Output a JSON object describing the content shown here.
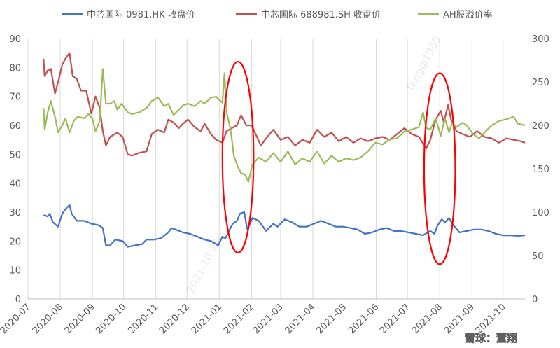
{
  "chart_data": {
    "type": "line",
    "title": "",
    "xlabel": "",
    "ylabel": "",
    "x_ticks": [
      "2020-07",
      "2020-08",
      "2020-09",
      "2020-10",
      "2020-11",
      "2020-12",
      "2021-01",
      "2021-02",
      "2021-03",
      "2021-04",
      "2021-05",
      "2021-06",
      "2021-07",
      "2021-08",
      "2021-09",
      "2021-10"
    ],
    "x_range": [
      "2020-07-01",
      "2021-10-22"
    ],
    "ylim_left": [
      0,
      90
    ],
    "yticks_left": [
      0,
      10,
      20,
      30,
      40,
      50,
      60,
      70,
      80,
      90
    ],
    "ylim_right": [
      0,
      300
    ],
    "yticks_right": [
      0,
      50,
      100,
      150,
      200,
      250,
      300
    ],
    "grid": "vertical",
    "legend_position": "top",
    "series": [
      {
        "name": "中芯国际 0981.HK 收盘价",
        "color": "#4472C4",
        "axis": "left",
        "points": [
          [
            "2020-07-16",
            29.0
          ],
          [
            "2020-07-20",
            28.5
          ],
          [
            "2020-07-22",
            29.5
          ],
          [
            "2020-07-25",
            26.5
          ],
          [
            "2020-07-30",
            25.0
          ],
          [
            "2020-08-03",
            29.5
          ],
          [
            "2020-08-06",
            31.0
          ],
          [
            "2020-08-10",
            32.5
          ],
          [
            "2020-08-12",
            29.5
          ],
          [
            "2020-08-17",
            27.0
          ],
          [
            "2020-08-24",
            27.0
          ],
          [
            "2020-08-31",
            26.0
          ],
          [
            "2020-09-07",
            25.5
          ],
          [
            "2020-09-11",
            24.5
          ],
          [
            "2020-09-14",
            18.5
          ],
          [
            "2020-09-18",
            18.5
          ],
          [
            "2020-09-23",
            20.5
          ],
          [
            "2020-09-30",
            20.0
          ],
          [
            "2020-10-05",
            18.0
          ],
          [
            "2020-10-12",
            18.5
          ],
          [
            "2020-10-19",
            19.0
          ],
          [
            "2020-10-23",
            20.5
          ],
          [
            "2020-10-30",
            20.5
          ],
          [
            "2020-11-06",
            21.0
          ],
          [
            "2020-11-13",
            23.0
          ],
          [
            "2020-11-16",
            24.5
          ],
          [
            "2020-11-20",
            24.0
          ],
          [
            "2020-11-27",
            23.0
          ],
          [
            "2020-12-04",
            22.5
          ],
          [
            "2020-12-11",
            21.5
          ],
          [
            "2020-12-18",
            20.5
          ],
          [
            "2020-12-24",
            20.0
          ],
          [
            "2020-12-31",
            18.5
          ],
          [
            "2021-01-04",
            21.5
          ],
          [
            "2021-01-07",
            21.0
          ],
          [
            "2021-01-11",
            24.0
          ],
          [
            "2021-01-14",
            26.0
          ],
          [
            "2021-01-18",
            27.0
          ],
          [
            "2021-01-21",
            29.5
          ],
          [
            "2021-01-25",
            30.0
          ],
          [
            "2021-01-28",
            24.0
          ],
          [
            "2021-02-02",
            28.0
          ],
          [
            "2021-02-08",
            27.0
          ],
          [
            "2021-02-15",
            23.5
          ],
          [
            "2021-02-22",
            26.0
          ],
          [
            "2021-02-26",
            25.0
          ],
          [
            "2021-03-05",
            27.5
          ],
          [
            "2021-03-12",
            26.5
          ],
          [
            "2021-03-19",
            25.0
          ],
          [
            "2021-03-26",
            25.0
          ],
          [
            "2021-04-02",
            26.0
          ],
          [
            "2021-04-09",
            27.0
          ],
          [
            "2021-04-16",
            26.0
          ],
          [
            "2021-04-23",
            25.0
          ],
          [
            "2021-04-30",
            25.0
          ],
          [
            "2021-05-07",
            24.5
          ],
          [
            "2021-05-14",
            24.0
          ],
          [
            "2021-05-21",
            22.5
          ],
          [
            "2021-05-28",
            23.0
          ],
          [
            "2021-06-04",
            24.0
          ],
          [
            "2021-06-11",
            24.5
          ],
          [
            "2021-06-18",
            23.5
          ],
          [
            "2021-06-25",
            23.5
          ],
          [
            "2021-07-02",
            23.0
          ],
          [
            "2021-07-09",
            22.5
          ],
          [
            "2021-07-16",
            22.0
          ],
          [
            "2021-07-23",
            23.5
          ],
          [
            "2021-07-27",
            22.5
          ],
          [
            "2021-07-30",
            25.5
          ],
          [
            "2021-08-03",
            27.5
          ],
          [
            "2021-08-06",
            26.5
          ],
          [
            "2021-08-10",
            28.0
          ],
          [
            "2021-08-13",
            26.0
          ],
          [
            "2021-08-20",
            23.0
          ],
          [
            "2021-08-27",
            23.5
          ],
          [
            "2021-09-03",
            24.0
          ],
          [
            "2021-09-10",
            24.0
          ],
          [
            "2021-09-17",
            23.5
          ],
          [
            "2021-09-24",
            22.5
          ],
          [
            "2021-10-01",
            22.0
          ],
          [
            "2021-10-08",
            22.0
          ],
          [
            "2021-10-15",
            21.8
          ],
          [
            "2021-10-22",
            22.0
          ]
        ]
      },
      {
        "name": "中芯国际 688981.SH 收盘价",
        "color": "#C0504D",
        "axis": "left",
        "points": [
          [
            "2020-07-16",
            83.0
          ],
          [
            "2020-07-17",
            77.0
          ],
          [
            "2020-07-20",
            79.0
          ],
          [
            "2020-07-23",
            79.5
          ],
          [
            "2020-07-27",
            71.0
          ],
          [
            "2020-07-30",
            75.0
          ],
          [
            "2020-08-03",
            81.0
          ],
          [
            "2020-08-06",
            83.0
          ],
          [
            "2020-08-10",
            85.0
          ],
          [
            "2020-08-13",
            77.0
          ],
          [
            "2020-08-17",
            76.0
          ],
          [
            "2020-08-21",
            72.0
          ],
          [
            "2020-08-26",
            72.0
          ],
          [
            "2020-08-31",
            64.0
          ],
          [
            "2020-09-04",
            70.0
          ],
          [
            "2020-09-08",
            66.0
          ],
          [
            "2020-09-11",
            58.0
          ],
          [
            "2020-09-14",
            53.0
          ],
          [
            "2020-09-18",
            56.0
          ],
          [
            "2020-09-25",
            57.5
          ],
          [
            "2020-09-30",
            56.0
          ],
          [
            "2020-10-05",
            50.0
          ],
          [
            "2020-10-09",
            49.5
          ],
          [
            "2020-10-16",
            50.5
          ],
          [
            "2020-10-23",
            51.0
          ],
          [
            "2020-10-28",
            57.0
          ],
          [
            "2020-11-03",
            58.5
          ],
          [
            "2020-11-09",
            57.5
          ],
          [
            "2020-11-13",
            62.0
          ],
          [
            "2020-11-18",
            61.0
          ],
          [
            "2020-11-23",
            59.0
          ],
          [
            "2020-11-27",
            60.5
          ],
          [
            "2020-12-02",
            62.0
          ],
          [
            "2020-12-08",
            59.5
          ],
          [
            "2020-12-14",
            58.0
          ],
          [
            "2020-12-18",
            60.5
          ],
          [
            "2020-12-24",
            57.0
          ],
          [
            "2020-12-29",
            55.0
          ],
          [
            "2021-01-04",
            54.0
          ],
          [
            "2021-01-08",
            58.0
          ],
          [
            "2021-01-13",
            59.0
          ],
          [
            "2021-01-18",
            60.0
          ],
          [
            "2021-01-22",
            63.5
          ],
          [
            "2021-01-27",
            60.0
          ],
          [
            "2021-02-01",
            60.0
          ],
          [
            "2021-02-05",
            57.0
          ],
          [
            "2021-02-10",
            53.0
          ],
          [
            "2021-02-15",
            55.5
          ],
          [
            "2021-02-22",
            58.5
          ],
          [
            "2021-03-01",
            55.0
          ],
          [
            "2021-03-08",
            56.0
          ],
          [
            "2021-03-15",
            53.0
          ],
          [
            "2021-03-22",
            55.0
          ],
          [
            "2021-03-29",
            54.0
          ],
          [
            "2021-04-05",
            58.5
          ],
          [
            "2021-04-12",
            56.0
          ],
          [
            "2021-04-19",
            57.5
          ],
          [
            "2021-04-26",
            54.5
          ],
          [
            "2021-05-03",
            56.0
          ],
          [
            "2021-05-10",
            54.0
          ],
          [
            "2021-05-17",
            55.5
          ],
          [
            "2021-05-24",
            54.5
          ],
          [
            "2021-05-31",
            55.5
          ],
          [
            "2021-06-07",
            56.0
          ],
          [
            "2021-06-14",
            55.0
          ],
          [
            "2021-06-21",
            57.0
          ],
          [
            "2021-06-28",
            59.0
          ],
          [
            "2021-07-05",
            57.0
          ],
          [
            "2021-07-12",
            56.0
          ],
          [
            "2021-07-19",
            52.0
          ],
          [
            "2021-07-23",
            55.0
          ],
          [
            "2021-07-28",
            62.0
          ],
          [
            "2021-08-02",
            65.0
          ],
          [
            "2021-08-05",
            61.0
          ],
          [
            "2021-08-09",
            67.0
          ],
          [
            "2021-08-12",
            62.0
          ],
          [
            "2021-08-17",
            58.0
          ],
          [
            "2021-08-23",
            57.0
          ],
          [
            "2021-08-30",
            56.0
          ],
          [
            "2021-09-06",
            58.0
          ],
          [
            "2021-09-13",
            56.0
          ],
          [
            "2021-09-20",
            55.5
          ],
          [
            "2021-09-27",
            54.0
          ],
          [
            "2021-10-04",
            55.5
          ],
          [
            "2021-10-11",
            55.0
          ],
          [
            "2021-10-18",
            54.5
          ],
          [
            "2021-10-22",
            54.0
          ]
        ]
      },
      {
        "name": "AH股溢价率",
        "color": "#9BBB59",
        "axis": "right",
        "points": [
          [
            "2020-07-16",
            220
          ],
          [
            "2020-07-17",
            195
          ],
          [
            "2020-07-20",
            215
          ],
          [
            "2020-07-23",
            228
          ],
          [
            "2020-07-27",
            210
          ],
          [
            "2020-07-30",
            192
          ],
          [
            "2020-08-03",
            200
          ],
          [
            "2020-08-06",
            208
          ],
          [
            "2020-08-10",
            192
          ],
          [
            "2020-08-14",
            205
          ],
          [
            "2020-08-18",
            210
          ],
          [
            "2020-08-24",
            208
          ],
          [
            "2020-08-28",
            213
          ],
          [
            "2020-09-01",
            208
          ],
          [
            "2020-09-04",
            193
          ],
          [
            "2020-09-08",
            205
          ],
          [
            "2020-09-11",
            265
          ],
          [
            "2020-09-14",
            225
          ],
          [
            "2020-09-18",
            225
          ],
          [
            "2020-09-22",
            228
          ],
          [
            "2020-09-25",
            218
          ],
          [
            "2020-09-29",
            225
          ],
          [
            "2020-10-05",
            215
          ],
          [
            "2020-10-09",
            213
          ],
          [
            "2020-10-16",
            215
          ],
          [
            "2020-10-23",
            220
          ],
          [
            "2020-10-28",
            228
          ],
          [
            "2020-11-03",
            232
          ],
          [
            "2020-11-09",
            222
          ],
          [
            "2020-11-13",
            225
          ],
          [
            "2020-11-18",
            212
          ],
          [
            "2020-11-23",
            218
          ],
          [
            "2020-11-27",
            223
          ],
          [
            "2020-12-02",
            225
          ],
          [
            "2020-12-08",
            222
          ],
          [
            "2020-12-14",
            228
          ],
          [
            "2020-12-18",
            225
          ],
          [
            "2020-12-24",
            232
          ],
          [
            "2020-12-29",
            233
          ],
          [
            "2021-01-04",
            226
          ],
          [
            "2021-01-06",
            260
          ],
          [
            "2021-01-08",
            215
          ],
          [
            "2021-01-11",
            200
          ],
          [
            "2021-01-13",
            185
          ],
          [
            "2021-01-15",
            165
          ],
          [
            "2021-01-19",
            152
          ],
          [
            "2021-01-22",
            145
          ],
          [
            "2021-01-26",
            143
          ],
          [
            "2021-01-29",
            135
          ],
          [
            "2021-02-02",
            155
          ],
          [
            "2021-02-08",
            163
          ],
          [
            "2021-02-15",
            158
          ],
          [
            "2021-02-22",
            168
          ],
          [
            "2021-03-01",
            158
          ],
          [
            "2021-03-08",
            170
          ],
          [
            "2021-03-15",
            155
          ],
          [
            "2021-03-22",
            162
          ],
          [
            "2021-03-29",
            158
          ],
          [
            "2021-04-05",
            170
          ],
          [
            "2021-04-12",
            156
          ],
          [
            "2021-04-19",
            165
          ],
          [
            "2021-04-26",
            158
          ],
          [
            "2021-05-03",
            162
          ],
          [
            "2021-05-10",
            160
          ],
          [
            "2021-05-17",
            163
          ],
          [
            "2021-05-24",
            170
          ],
          [
            "2021-05-31",
            180
          ],
          [
            "2021-06-07",
            178
          ],
          [
            "2021-06-14",
            184
          ],
          [
            "2021-06-21",
            185
          ],
          [
            "2021-06-28",
            193
          ],
          [
            "2021-07-05",
            195
          ],
          [
            "2021-07-12",
            198
          ],
          [
            "2021-07-16",
            215
          ],
          [
            "2021-07-19",
            197
          ],
          [
            "2021-07-23",
            195
          ],
          [
            "2021-07-28",
            208
          ],
          [
            "2021-08-02",
            188
          ],
          [
            "2021-08-06",
            208
          ],
          [
            "2021-08-10",
            192
          ],
          [
            "2021-08-13",
            203
          ],
          [
            "2021-08-17",
            198
          ],
          [
            "2021-08-23",
            203
          ],
          [
            "2021-08-27",
            200
          ],
          [
            "2021-09-02",
            190
          ],
          [
            "2021-09-08",
            185
          ],
          [
            "2021-09-14",
            193
          ],
          [
            "2021-09-20",
            200
          ],
          [
            "2021-09-27",
            205
          ],
          [
            "2021-10-04",
            207
          ],
          [
            "2021-10-11",
            210
          ],
          [
            "2021-10-15",
            202
          ],
          [
            "2021-10-22",
            200
          ]
        ]
      }
    ],
    "annotations": [
      {
        "shape": "ellipse",
        "color": "#FF0000",
        "x_center": "2021-01-19",
        "y_center": 49,
        "y_half_span": 33,
        "x_half_days": 15
      },
      {
        "shape": "ellipse",
        "color": "#FF0000",
        "x_center": "2021-08-01",
        "y_center": 45,
        "y_half_span": 33,
        "x_half_days": 15
      }
    ]
  },
  "watermark": {
    "rotated_text": "fengqi1985",
    "bottom_text": "2021-10-24",
    "brand_text": "雪球：董翔"
  }
}
